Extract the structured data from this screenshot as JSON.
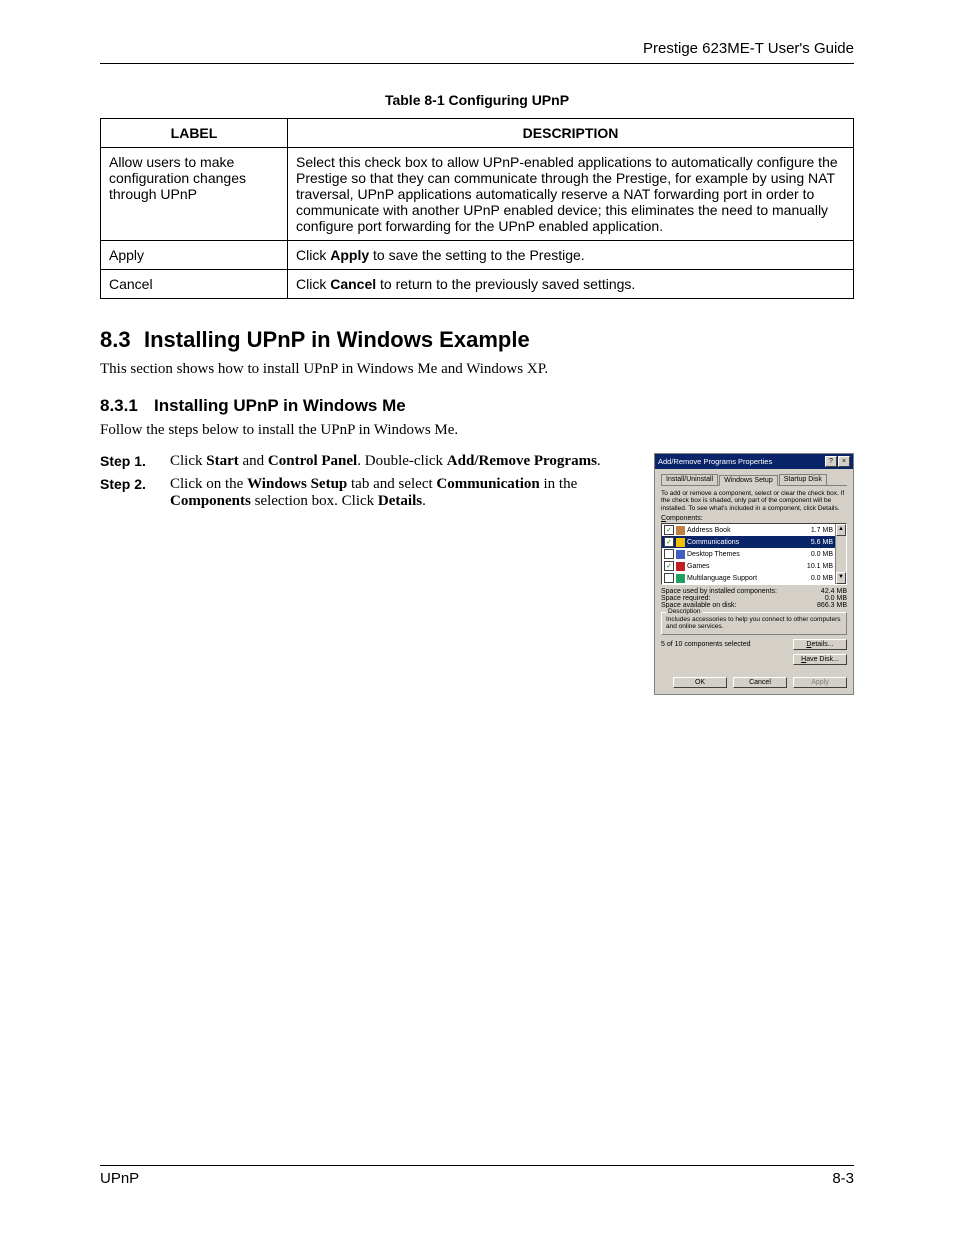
{
  "header": {
    "right": "Prestige 623ME-T User's Guide"
  },
  "table": {
    "caption": "Table 8-1 Configuring UPnP",
    "header": {
      "label": "LABEL",
      "description": "DESCRIPTION"
    },
    "rows": [
      {
        "label": "Allow users to make configuration changes through UPnP",
        "description_html": "Select this check box to allow UPnP-enabled applications to automatically configure the Prestige so that they can communicate through the Prestige, for example by using NAT traversal, UPnP applications automatically reserve a NAT forwarding port in order to communicate with another UPnP enabled device; this eliminates the need to manually configure port forwarding for the UPnP enabled application."
      },
      {
        "label": "Apply",
        "description_html": "Click <b>Apply</b> to save the setting to the Prestige."
      },
      {
        "label": "Cancel",
        "description_html": "Click <b>Cancel</b> to return to the previously saved settings."
      }
    ]
  },
  "section": {
    "number": "8.3",
    "title": "Installing UPnP in Windows Example",
    "intro": "This section shows how to install UPnP in Windows Me and Windows XP."
  },
  "subsection": {
    "number": "8.3.1",
    "title": "Installing UPnP in Windows Me",
    "intro": "Follow the steps below to install the UPnP in Windows Me.",
    "steps": [
      {
        "label": "Step 1.",
        "html": "Click <b>Start</b> and <b>Control Panel</b>. Double-click <b>Add/Remove Programs</b>."
      },
      {
        "label": "Step 2.",
        "html": "Click on the <b>Windows Setup</b> tab and select <b>Communication</b> in the <b>Components</b> selection box. Click <b>Details</b>."
      }
    ]
  },
  "dialog": {
    "title": "Add/Remove Programs Properties",
    "title_bg": "#0a246a",
    "title_fg": "#ffffff",
    "body_bg": "#d4d0c8",
    "tabs": [
      "Install/Uninstall",
      "Windows Setup",
      "Startup Disk"
    ],
    "active_tab_index": 1,
    "instructions": "To add or remove a component, select or clear the check box. If the check box is shaded, only part of the component will be installed. To see what's included in a component, click Details.",
    "components_label_html": "<span class='u'>C</span>omponents:",
    "items": [
      {
        "checked": true,
        "selected": false,
        "name": "Address Book",
        "size": "1.7 MB",
        "icon_color": "#c08040"
      },
      {
        "checked": true,
        "selected": true,
        "name": "Communications",
        "size": "5.6 MB",
        "icon_color": "#f0c000"
      },
      {
        "checked": false,
        "selected": false,
        "name": "Desktop Themes",
        "size": "0.0 MB",
        "icon_color": "#4060c0"
      },
      {
        "checked": true,
        "selected": false,
        "name": "Games",
        "size": "10.1 MB",
        "icon_color": "#c02020"
      },
      {
        "checked": false,
        "selected": false,
        "name": "Multilanguage Support",
        "size": "0.0 MB",
        "icon_color": "#20a060"
      }
    ],
    "stats": [
      {
        "label": "Space used by installed components:",
        "value": "42.4 MB"
      },
      {
        "label": "Space required:",
        "value": "0.0 MB"
      },
      {
        "label": "Space available on disk:",
        "value": "866.3 MB"
      }
    ],
    "description_group": {
      "title": "Description",
      "text": "Includes accessories to help you connect to other computers and online services."
    },
    "selected_text": "5 of 10 components selected",
    "buttons": {
      "details_html": "<span class='u'>D</span>etails...",
      "have_disk_html": "<span class='u'>H</span>ave Disk...",
      "ok": "OK",
      "cancel": "Cancel",
      "apply": "Apply"
    }
  },
  "footer": {
    "left": "UPnP",
    "right": "8-3"
  }
}
